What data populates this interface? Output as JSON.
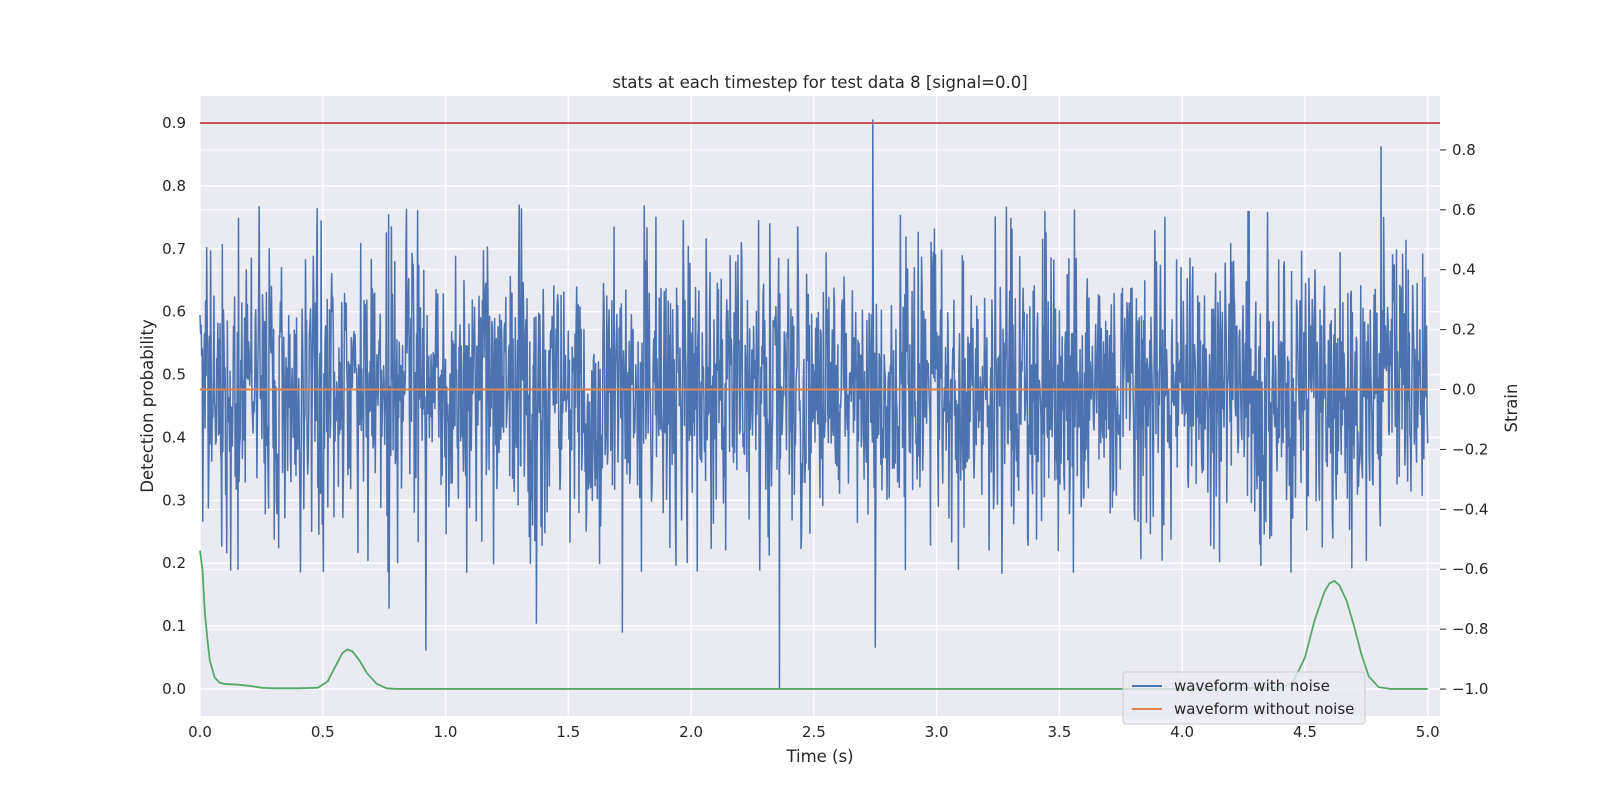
{
  "chart_data": {
    "type": "line",
    "title": "stats at each timestep for test data 8 [signal=0.0]",
    "xlabel": "Time (s)",
    "ylabel": "Detection probability",
    "ylabel_right": "Strain",
    "xlim": [
      0.0,
      5.05
    ],
    "ylim": [
      -0.043,
      0.943
    ],
    "ylim_right": [
      -1.09,
      0.98
    ],
    "x_ticks": [
      0.0,
      0.5,
      1.0,
      1.5,
      2.0,
      2.5,
      3.0,
      3.5,
      4.0,
      4.5,
      5.0
    ],
    "x_tick_labels": [
      "0.0",
      "0.5",
      "1.0",
      "1.5",
      "2.0",
      "2.5",
      "3.0",
      "3.5",
      "4.0",
      "4.5",
      "5.0"
    ],
    "y_ticks": [
      0.0,
      0.1,
      0.2,
      0.3,
      0.4,
      0.5,
      0.6,
      0.7,
      0.8,
      0.9
    ],
    "y_tick_labels": [
      "0.0",
      "0.1",
      "0.2",
      "0.3",
      "0.4",
      "0.5",
      "0.6",
      "0.7",
      "0.8",
      "0.9"
    ],
    "y_ticks_right": [
      -1.0,
      -0.8,
      -0.6,
      -0.4,
      -0.2,
      0.0,
      0.2,
      0.4,
      0.6,
      0.8
    ],
    "y_tick_labels_right": [
      "−1.0",
      "−0.8",
      "−0.6",
      "−0.4",
      "−0.2",
      "0.0",
      "0.2",
      "0.4",
      "0.6",
      "0.8"
    ],
    "grid": true,
    "legend_position": "lower-right",
    "colors": {
      "waveform_with_noise": "#4c72b0",
      "waveform_without_noise": "#dd8452",
      "detection_probability": "#55a868",
      "threshold": "#c44e52",
      "background": "#eaeaf2"
    },
    "series": [
      {
        "name": "waveform with noise",
        "axis": "right",
        "approx_range": [
          -0.62,
          0.62
        ],
        "spikes": [
          {
            "x": 2.74,
            "y": 0.9
          },
          {
            "x": 4.81,
            "y": 0.81
          },
          {
            "x": 2.36,
            "y": -1.0
          },
          {
            "x": 0.92,
            "y": -0.87
          },
          {
            "x": 2.75,
            "y": -0.86
          },
          {
            "x": 1.72,
            "y": -0.81
          },
          {
            "x": 1.37,
            "y": -0.78
          },
          {
            "x": 0.77,
            "y": -0.73
          }
        ]
      },
      {
        "name": "waveform without noise",
        "axis": "right",
        "x": [
          0.0,
          5.0
        ],
        "y": [
          0.0,
          0.0
        ]
      },
      {
        "axis": "left",
        "x": [
          0.0,
          0.01,
          0.02,
          0.03,
          0.04,
          0.06,
          0.08,
          0.1,
          0.15,
          0.2,
          0.25,
          0.3,
          0.4,
          0.48,
          0.52,
          0.55,
          0.58,
          0.6,
          0.62,
          0.65,
          0.68,
          0.72,
          0.76,
          0.8,
          1.0,
          2.0,
          3.0,
          4.0,
          4.4,
          4.45,
          4.5,
          4.54,
          4.58,
          4.6,
          4.62,
          4.64,
          4.67,
          4.7,
          4.73,
          4.76,
          4.8,
          4.85,
          4.9,
          5.0
        ],
        "y": [
          0.22,
          0.19,
          0.12,
          0.08,
          0.045,
          0.018,
          0.01,
          0.008,
          0.007,
          0.005,
          0.002,
          0.001,
          0.001,
          0.002,
          0.012,
          0.035,
          0.057,
          0.063,
          0.06,
          0.045,
          0.025,
          0.008,
          0.001,
          0.0,
          0.0,
          0.0,
          0.0,
          0.0,
          0.002,
          0.01,
          0.05,
          0.11,
          0.155,
          0.168,
          0.172,
          0.165,
          0.14,
          0.1,
          0.055,
          0.02,
          0.003,
          0.0,
          0.0,
          0.0
        ]
      },
      {
        "axis": "left",
        "x": [
          0.0,
          5.05
        ],
        "y": [
          0.9,
          0.9
        ]
      }
    ],
    "legend": [
      "waveform with noise",
      "waveform without noise"
    ]
  }
}
